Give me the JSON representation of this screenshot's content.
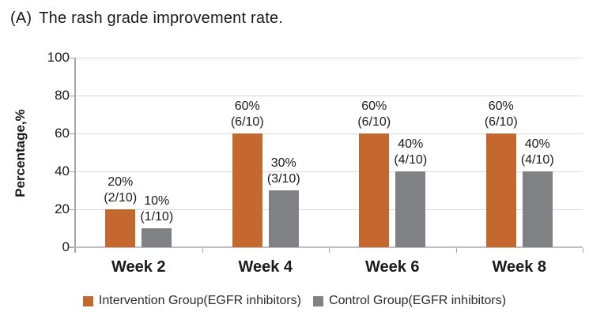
{
  "title": {
    "prefix": "(A)",
    "text": "The rash grade improvement rate."
  },
  "chart_data": {
    "type": "bar",
    "title": "(A) The rash grade improvement rate.",
    "xlabel": "",
    "ylabel": "Percentage,%",
    "ylim": [
      0,
      100
    ],
    "yticks": [
      0,
      20,
      40,
      60,
      80,
      100
    ],
    "grid": true,
    "legend_position": "bottom",
    "categories": [
      "Week 2",
      "Week 4",
      "Week 6",
      "Week 8"
    ],
    "series": [
      {
        "name": "Intervention Group(EGFR inhibitors)",
        "color": "#c5682f",
        "values": [
          20,
          60,
          60,
          60
        ],
        "data_labels": [
          [
            "20%",
            "(2/10)"
          ],
          [
            "60%",
            "(6/10)"
          ],
          [
            "60%",
            "(6/10)"
          ],
          [
            "60%",
            "(6/10)"
          ]
        ]
      },
      {
        "name": "Control Group(EGFR inhibitors)",
        "color": "#808185",
        "values": [
          10,
          30,
          40,
          40
        ],
        "data_labels": [
          [
            "10%",
            "(1/10)"
          ],
          [
            "30%",
            "(3/10)"
          ],
          [
            "40%",
            "(4/10)"
          ],
          [
            "40%",
            "(4/10)"
          ]
        ]
      }
    ]
  },
  "colors": {
    "grid": "#d9d9d9",
    "y_axis": "#a6a6a6",
    "x_axis": "#bfbfbf",
    "tick": "#a6a6a6",
    "text": "#1a1a1a"
  }
}
